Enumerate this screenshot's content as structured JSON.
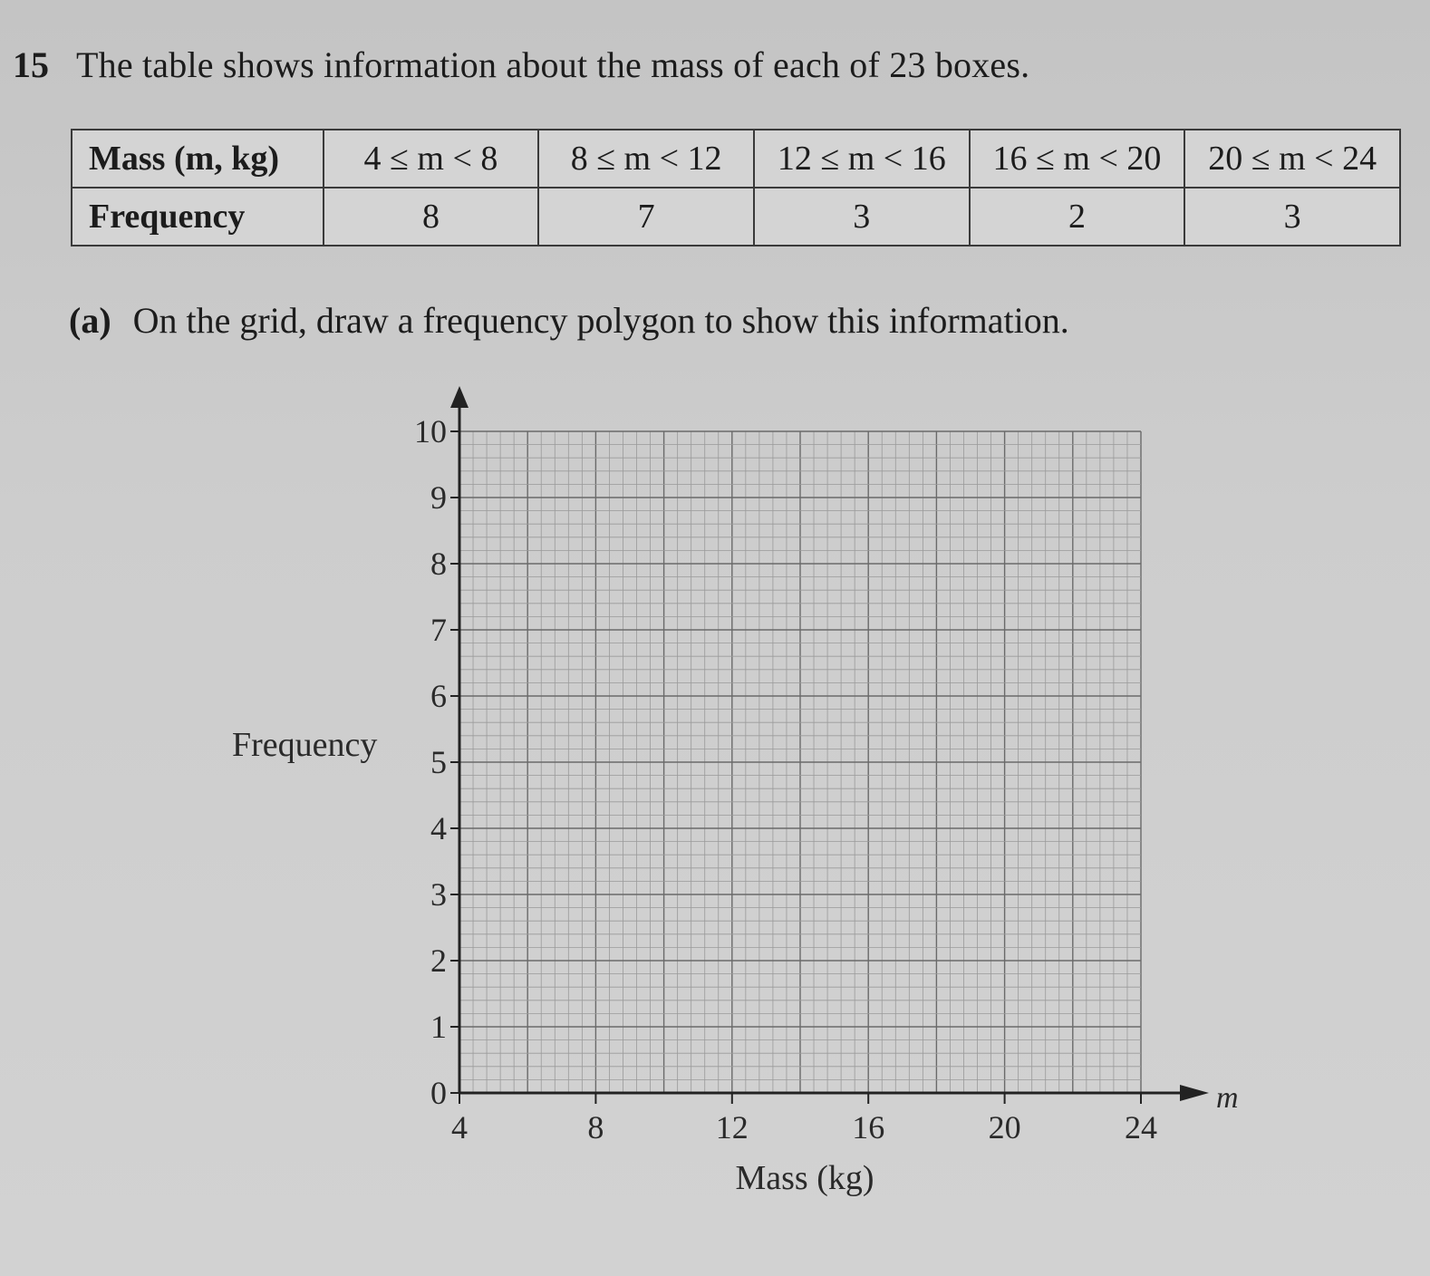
{
  "question": {
    "number": "15",
    "text": "The table shows information about the mass of each of 23 boxes."
  },
  "table": {
    "row_headers": [
      "Mass (m, kg)",
      "Frequency"
    ],
    "classes": [
      "4 ≤ m < 8",
      "8 ≤ m < 12",
      "12 ≤ m < 16",
      "16 ≤ m < 20",
      "20 ≤ m < 24"
    ],
    "frequencies": [
      "8",
      "7",
      "3",
      "2",
      "3"
    ]
  },
  "part_a": {
    "label": "(a)",
    "text": "On the grid, draw a frequency polygon to show this information."
  },
  "chart_data": {
    "type": "grid",
    "xlabel": "Mass (kg)",
    "ylabel": "Frequency",
    "x_axis_variable": "m",
    "x_ticks": [
      "4",
      "8",
      "12",
      "16",
      "20",
      "24"
    ],
    "y_ticks": [
      "0",
      "1",
      "2",
      "3",
      "4",
      "5",
      "6",
      "7",
      "8",
      "9",
      "10"
    ],
    "xlim": [
      4,
      24
    ],
    "ylim": [
      0,
      10
    ],
    "grid": true,
    "series": []
  }
}
